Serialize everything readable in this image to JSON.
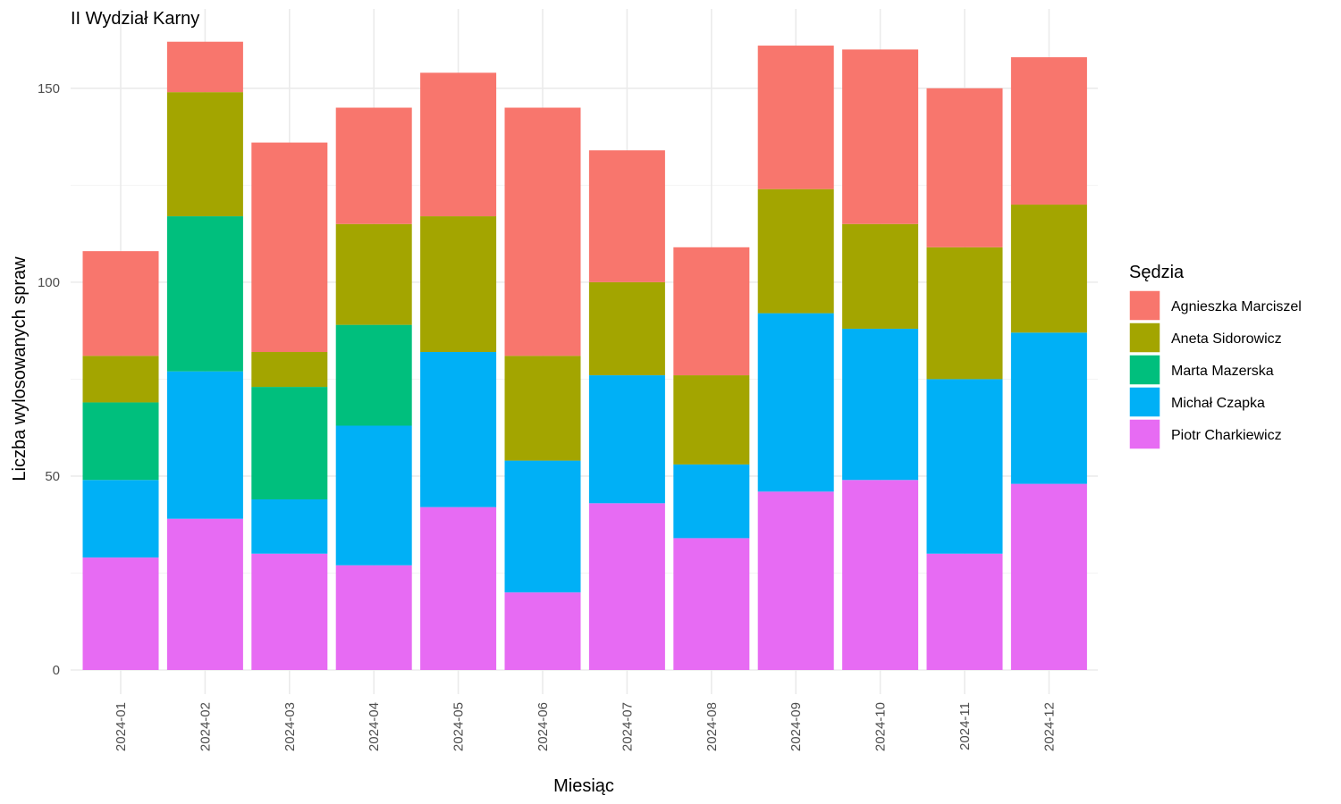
{
  "chart_data": {
    "type": "bar",
    "stacked": true,
    "title": "II Wydział Karny",
    "xlabel": "Miesiąc",
    "ylabel": "Liczba wylosowanych spraw",
    "ylim": [
      0,
      162
    ],
    "yticks": [
      0,
      50,
      100,
      150
    ],
    "grid": true,
    "legend_title": "Sędzia",
    "legend_position": "right",
    "categories": [
      "2024-01",
      "2024-02",
      "2024-03",
      "2024-04",
      "2024-05",
      "2024-06",
      "2024-07",
      "2024-08",
      "2024-09",
      "2024-10",
      "2024-11",
      "2024-12"
    ],
    "series": [
      {
        "name": "Piotr Charkiewicz",
        "color": "#E76BF3",
        "values": [
          29,
          39,
          30,
          27,
          42,
          20,
          43,
          34,
          46,
          49,
          30,
          48
        ]
      },
      {
        "name": "Michał Czapka",
        "color": "#00B0F6",
        "values": [
          20,
          38,
          14,
          36,
          40,
          34,
          33,
          19,
          46,
          39,
          45,
          39
        ]
      },
      {
        "name": "Marta Mazerska",
        "color": "#00BF7D",
        "values": [
          20,
          40,
          29,
          26,
          0,
          0,
          0,
          0,
          0,
          0,
          0,
          0
        ]
      },
      {
        "name": "Aneta Sidorowicz",
        "color": "#A3A500",
        "values": [
          12,
          32,
          9,
          26,
          35,
          27,
          24,
          23,
          32,
          27,
          34,
          33
        ]
      },
      {
        "name": "Agnieszka Marciszel",
        "color": "#F8766D",
        "values": [
          27,
          13,
          54,
          30,
          37,
          64,
          34,
          33,
          37,
          45,
          41,
          38
        ]
      }
    ],
    "legend_order": [
      "Agnieszka Marciszel",
      "Aneta Sidorowicz",
      "Marta Mazerska",
      "Michał Czapka",
      "Piotr Charkiewicz"
    ]
  }
}
